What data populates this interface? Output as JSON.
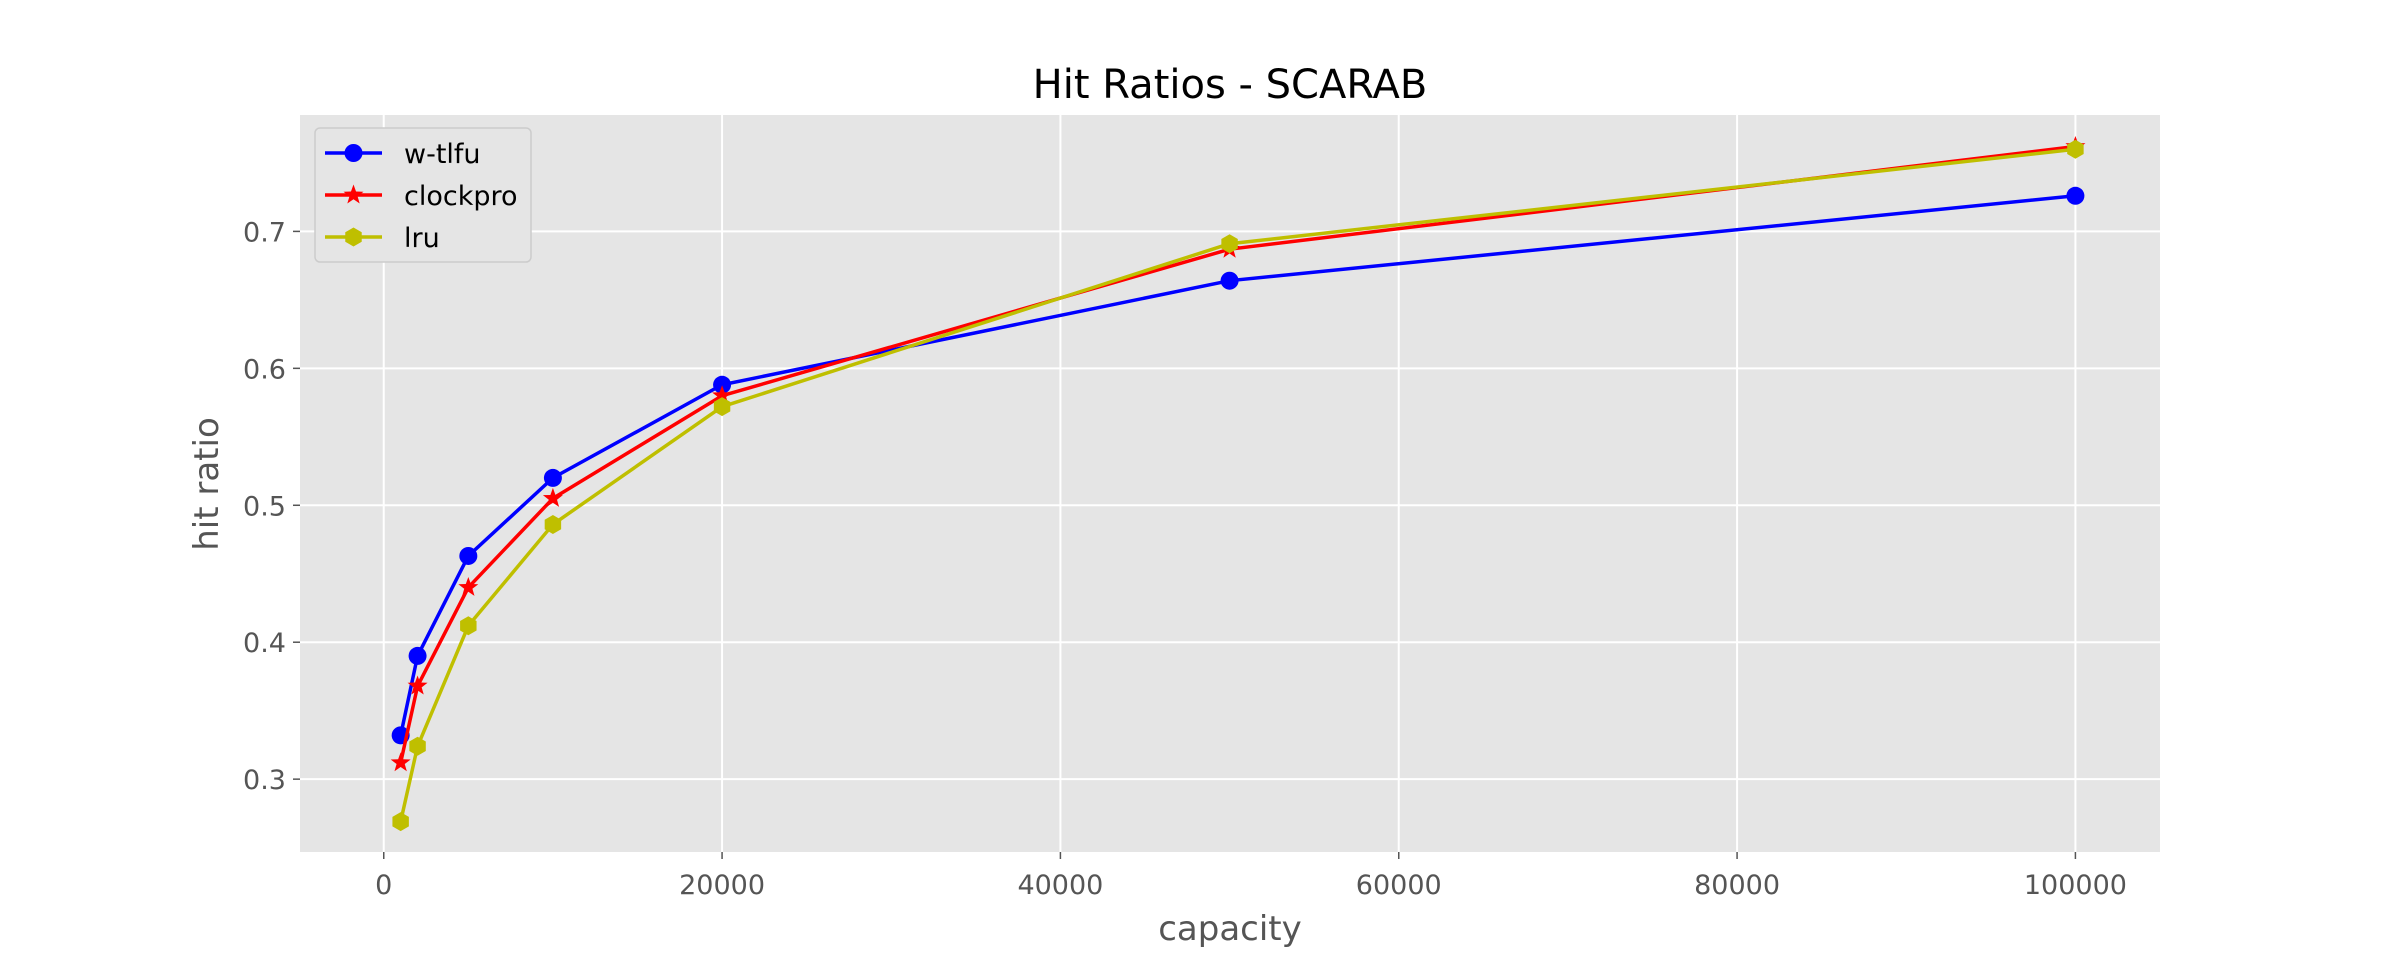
{
  "chart_data": {
    "type": "line",
    "title": "Hit Ratios - SCARAB",
    "xlabel": "capacity",
    "ylabel": "hit ratio",
    "xlim": [
      -4950,
      105000
    ],
    "ylim": [
      0.2468,
      0.785
    ],
    "xticks": [
      0,
      20000,
      40000,
      60000,
      80000,
      100000
    ],
    "yticks": [
      0.3,
      0.4,
      0.5,
      0.6,
      0.7
    ],
    "xtick_labels": [
      "0",
      "20000",
      "40000",
      "60000",
      "80000",
      "100000"
    ],
    "ytick_labels": [
      "0.3",
      "0.4",
      "0.5",
      "0.6",
      "0.7"
    ],
    "grid": true,
    "legend_position": "top-left",
    "series": [
      {
        "name": "w-tlfu",
        "color": "#0000ff",
        "marker": "circle",
        "x": [
          1000,
          2000,
          5000,
          10000,
          20000,
          50000,
          100000
        ],
        "y": [
          0.332,
          0.39,
          0.463,
          0.52,
          0.588,
          0.664,
          0.726
        ]
      },
      {
        "name": "clockpro",
        "color": "#ff0000",
        "marker": "star",
        "x": [
          1000,
          2000,
          5000,
          10000,
          20000,
          50000,
          100000
        ],
        "y": [
          0.312,
          0.368,
          0.44,
          0.505,
          0.58,
          0.687,
          0.762
        ]
      },
      {
        "name": "lru",
        "color": "#bfbf00",
        "marker": "hexagon",
        "x": [
          1000,
          2000,
          5000,
          10000,
          20000,
          50000,
          100000
        ],
        "y": [
          0.269,
          0.324,
          0.412,
          0.486,
          0.572,
          0.691,
          0.76
        ]
      }
    ]
  }
}
